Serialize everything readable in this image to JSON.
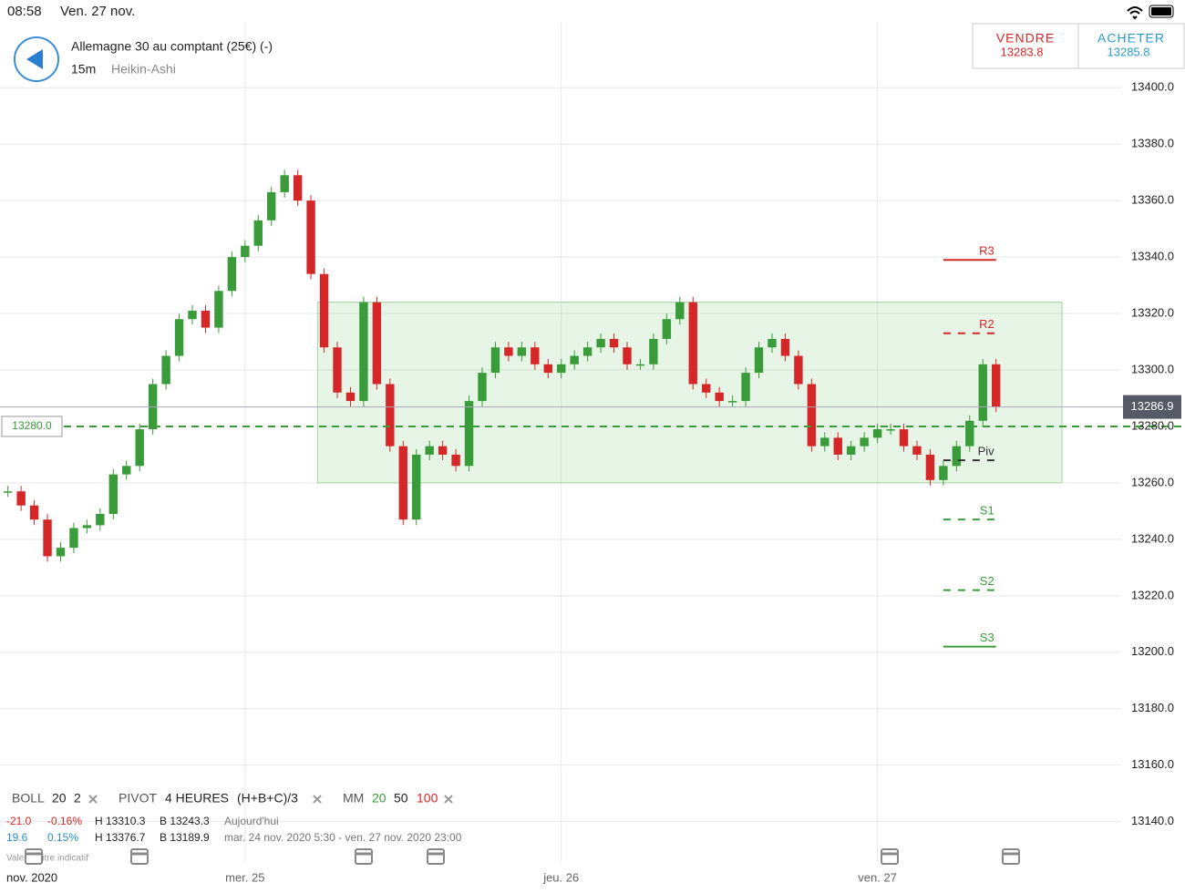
{
  "status_bar": {
    "time": "08:58",
    "date": "Ven. 27 nov."
  },
  "header": {
    "instrument": "Allemagne 30 au comptant (25€) (-)",
    "interval": "15m",
    "chart_style": "Heikin-Ashi"
  },
  "quote": {
    "sell_label": "VENDRE",
    "sell_price": "13283.8",
    "buy_label": "ACHETER",
    "buy_price": "13285.8"
  },
  "chart_data": {
    "type": "candlestick",
    "x": [
      -18,
      -17,
      -16,
      -15,
      -14,
      -13,
      -12,
      -11,
      -10,
      -9,
      -8,
      -7,
      -6,
      -5,
      -4,
      -3,
      -2,
      -1,
      0,
      1,
      2,
      3,
      4,
      5,
      6,
      7,
      8,
      9,
      10,
      11,
      12,
      13,
      14,
      15,
      16,
      17,
      18,
      19,
      20,
      21,
      22,
      23,
      24,
      25,
      26,
      27,
      28,
      29,
      30,
      31,
      32,
      33,
      34,
      35,
      36,
      37,
      38,
      39,
      40,
      41,
      42,
      43,
      44,
      45,
      46,
      47,
      48,
      49,
      50,
      51,
      52,
      53,
      54,
      55,
      56,
      57
    ],
    "values": [
      13257,
      13252,
      13247,
      13234,
      13237,
      13244,
      13245,
      13249,
      13263,
      13266,
      13279,
      13295,
      13305,
      13318,
      13321,
      13315,
      13328,
      13340,
      13344,
      13353,
      13363,
      13369,
      13360,
      13334,
      13308,
      13292,
      13289,
      13324,
      13295,
      13273,
      13247,
      13270,
      13273,
      13270,
      13266,
      13289,
      13299,
      13308,
      13305,
      13308,
      13302,
      13299,
      13302,
      13305,
      13308,
      13311,
      13308,
      13302,
      13302,
      13311,
      13318,
      13324,
      13295,
      13292,
      13289,
      13289,
      13299,
      13308,
      13311,
      13305,
      13295,
      13273,
      13276,
      13270,
      13273,
      13276,
      13279,
      13279,
      13273,
      13270,
      13261,
      13266,
      13273,
      13282,
      13302,
      13287
    ],
    "up_color": "#3a9b3a",
    "down_color": "#d62728",
    "xlim": [
      -18.6,
      66.5
    ],
    "xticks": [
      {
        "value": 0,
        "label": "mer. 25"
      },
      {
        "value": 24,
        "label": "jeu. 26"
      },
      {
        "value": 48,
        "label": "ven. 27"
      }
    ],
    "period_label": "nov. 2020",
    "ylim": [
      13126,
      13423
    ],
    "yticks": [
      {
        "value": 13140,
        "label": "13140.0"
      },
      {
        "value": 13160,
        "label": "13160.0"
      },
      {
        "value": 13180,
        "label": "13180.0"
      },
      {
        "value": 13200,
        "label": "13200.0"
      },
      {
        "value": 13220,
        "label": "13220.0"
      },
      {
        "value": 13240,
        "label": "13240.0"
      },
      {
        "value": 13260,
        "label": "13260.0"
      },
      {
        "value": 13280,
        "label": "13280.0"
      },
      {
        "value": 13300,
        "label": "13300.0"
      },
      {
        "value": 13320,
        "label": "13320.0"
      },
      {
        "value": 13340,
        "label": "13340.0"
      },
      {
        "value": 13360,
        "label": "13360.0"
      },
      {
        "value": 13380,
        "label": "13380.0"
      },
      {
        "value": 13400,
        "label": "13400.0"
      }
    ],
    "grid": true,
    "current_price": 13286.9,
    "alert_level": {
      "value": 13280,
      "label": "13280.0"
    },
    "zone": {
      "x": [
        5.5,
        62
      ],
      "y": [
        13260,
        13324
      ]
    },
    "pivot_x": [
      53,
      57
    ],
    "pivots": [
      {
        "label": "R3",
        "value": 13339,
        "color": "#d62728"
      },
      {
        "label": "R2",
        "value": 13313,
        "color": "#d62728"
      },
      {
        "label": "Piv",
        "value": 13268,
        "color": "#333333"
      },
      {
        "label": "S1",
        "value": 13247,
        "color": "#3a9b3a"
      },
      {
        "label": "S2",
        "value": 13222,
        "color": "#3a9b3a"
      },
      {
        "label": "S3",
        "value": 13202,
        "color": "#3a9b3a"
      }
    ]
  },
  "indicators": {
    "boll": [
      "BOLL",
      "20",
      "2"
    ],
    "pivot": [
      "PIVOT",
      "4 HEURES",
      "(H+B+C)/3"
    ],
    "mm": [
      "MM",
      "20",
      "50",
      "100"
    ]
  },
  "stats": {
    "today": [
      "-21.0",
      "-0.16%",
      "H 13310.3",
      "B 13243.3",
      "Aujourd'hui"
    ],
    "period": [
      "19.6",
      "0.15%",
      "H 13376.7",
      "B 13189.9",
      "mar. 24 nov. 2020 5:30 - ven. 27 nov. 2020 23:00"
    ]
  },
  "footnote": "Valeur : titre indicatif"
}
